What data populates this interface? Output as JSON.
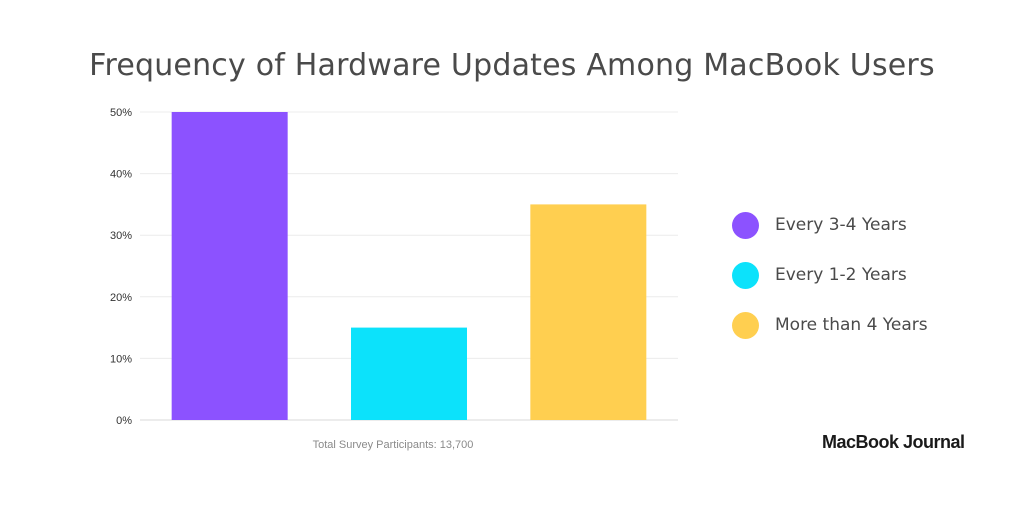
{
  "chart_data": {
    "type": "bar",
    "title": "Frequency of Hardware Updates Among MacBook Users",
    "categories": [
      "Every 3-4 Years",
      "Every 1-2 Years",
      "More than 4 Years"
    ],
    "values": [
      50,
      15,
      35
    ],
    "colors": [
      "#8c52ff",
      "#0ce2fb",
      "#ffcf50"
    ],
    "yticks": [
      "0%",
      "10%",
      "20%",
      "30%",
      "40%",
      "50%"
    ],
    "ylim": [
      0,
      50
    ],
    "unit": "%",
    "grid": true,
    "legend": "right",
    "footnote": "Total Survey Participants: 13,700"
  },
  "brand": "MacBook Journal"
}
